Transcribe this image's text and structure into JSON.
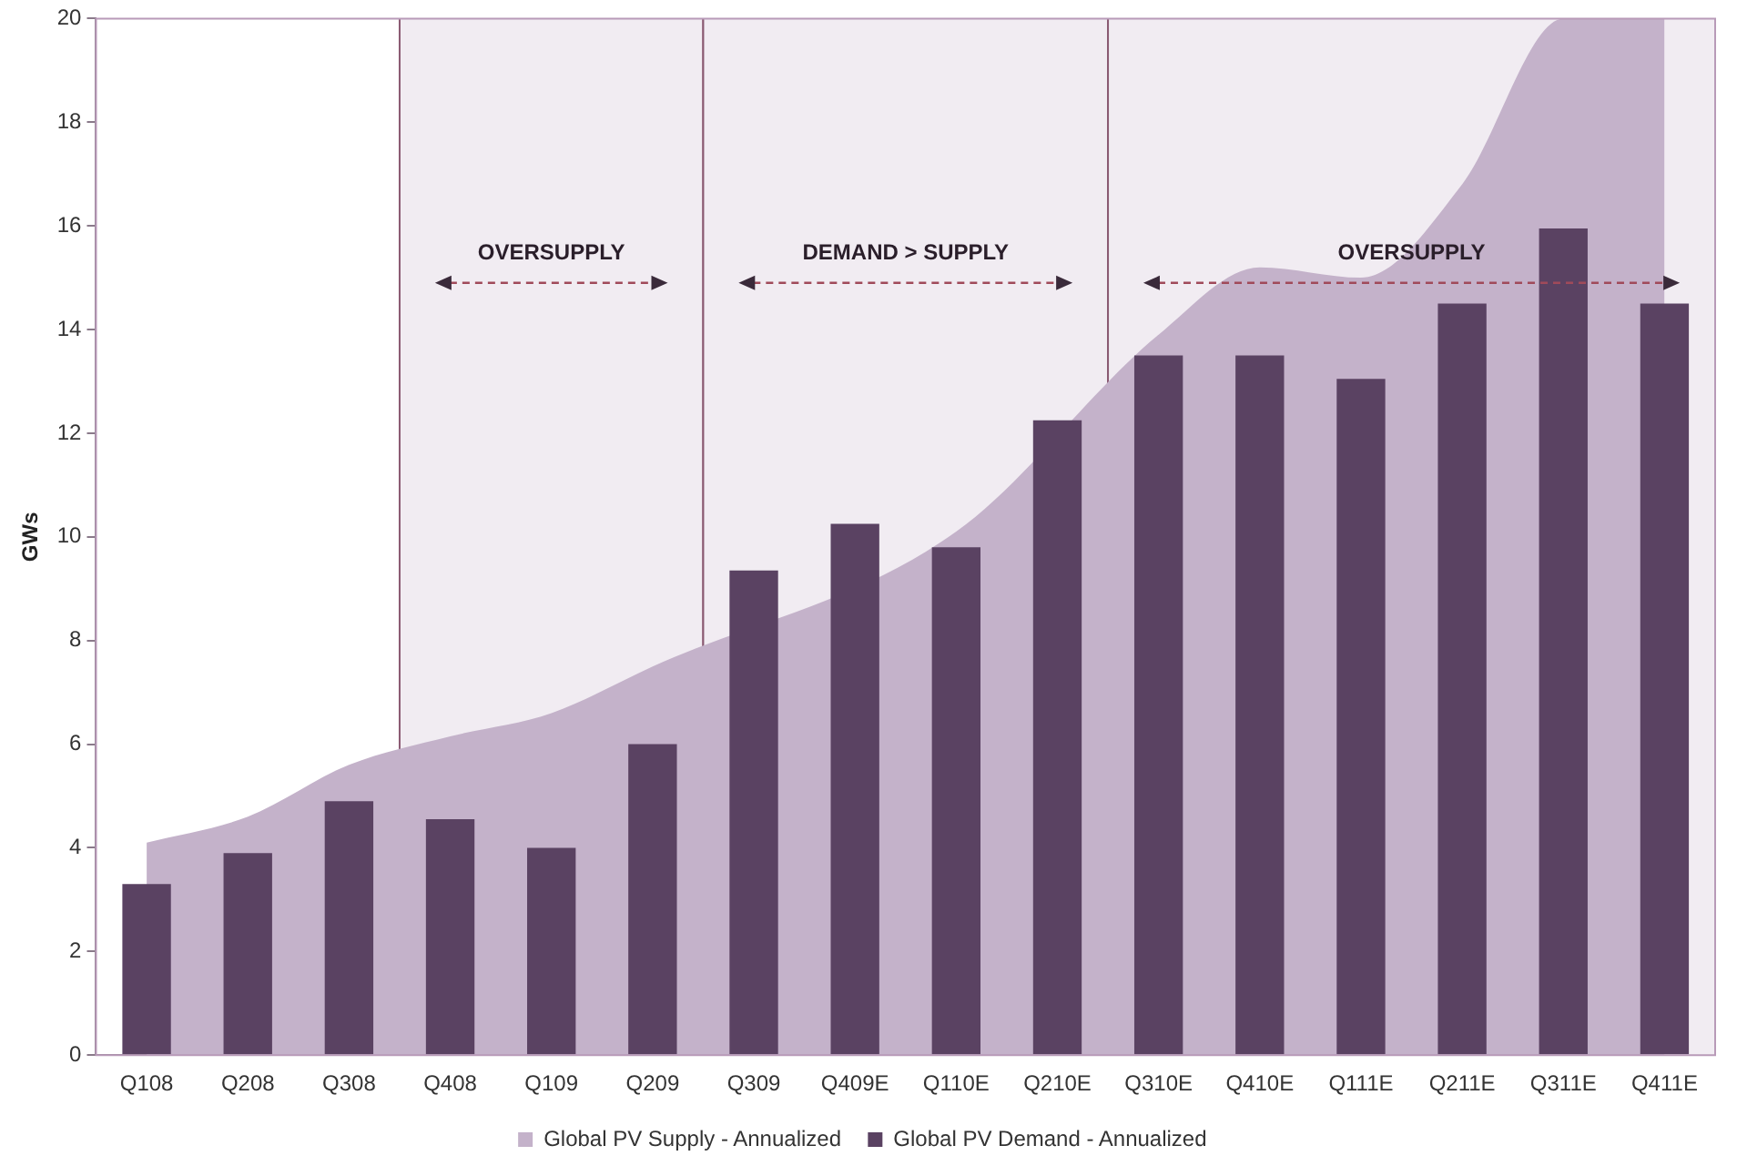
{
  "chart_data": {
    "type": "bar",
    "ylabel": "GWs",
    "categories": [
      "Q108",
      "Q208",
      "Q308",
      "Q408",
      "Q109",
      "Q209",
      "Q309",
      "Q409E",
      "Q110E",
      "Q210E",
      "Q310E",
      "Q410E",
      "Q111E",
      "Q211E",
      "Q311E",
      "Q411E"
    ],
    "series": [
      {
        "name": "Global PV Supply - Annualized",
        "type": "area",
        "color": "#c4b2ca",
        "values": [
          4.1,
          4.6,
          5.6,
          6.15,
          6.6,
          7.5,
          null,
          null,
          10.1,
          null,
          13.9,
          15.2,
          15.0,
          16.8,
          20,
          20
        ]
      },
      {
        "name": "Global PV Demand - Annualized",
        "type": "bar",
        "color": "#5a4262",
        "values": [
          3.3,
          3.9,
          4.9,
          4.55,
          4.0,
          6.0,
          9.35,
          10.25,
          9.8,
          12.25,
          13.5,
          13.5,
          13.05,
          14.5,
          15.95,
          14.5
        ]
      }
    ],
    "bands": [
      {
        "axis": "x",
        "from": "Q408",
        "to": "Q209",
        "label": "OVERSUPPLY",
        "color": "#f1ecf2"
      },
      {
        "axis": "x",
        "from": "Q309",
        "to": "Q210E",
        "label": "DEMAND > SUPPLY",
        "color": "#f1ecf2"
      },
      {
        "axis": "x",
        "from": "Q310E",
        "to": "Q411E",
        "label": "OVERSUPPLY",
        "color": "#f1ecf2"
      }
    ],
    "ylim": [
      0,
      20
    ],
    "yticks": [
      0,
      2,
      4,
      6,
      8,
      10,
      12,
      14,
      16,
      18,
      20
    ],
    "grid": false,
    "legend": "bottom"
  }
}
